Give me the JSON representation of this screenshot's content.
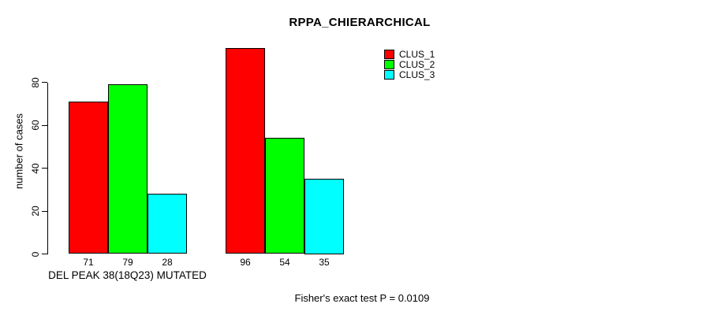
{
  "title": "RPPA_CHIERARCHICAL",
  "y_axis": {
    "label": "number of cases"
  },
  "x_axis": {
    "group_label": "DEL PEAK 38(18Q23) MUTATED"
  },
  "footer": "Fisher's exact test P = 0.0109",
  "legend": {
    "entries": [
      {
        "label": "CLUS_1",
        "color": "#FF0000"
      },
      {
        "label": "CLUS_2",
        "color": "#00FF00"
      },
      {
        "label": "CLUS_3",
        "color": "#00FFFF"
      }
    ]
  },
  "chart_data": {
    "type": "bar",
    "title": "RPPA_CHIERARCHICAL",
    "xlabel": "DEL PEAK 38(18Q23) MUTATED",
    "ylabel": "number of cases",
    "categories": [
      "DEL PEAK 38(18Q23) MUTATED",
      ""
    ],
    "series": [
      {
        "name": "CLUS_1",
        "color": "#FF0000",
        "values": [
          71,
          96
        ]
      },
      {
        "name": "CLUS_2",
        "color": "#00FF00",
        "values": [
          79,
          54
        ]
      },
      {
        "name": "CLUS_3",
        "color": "#00FFFF",
        "values": [
          28,
          35
        ]
      }
    ],
    "bar_value_labels": [
      [
        71,
        79,
        28
      ],
      [
        96,
        54,
        35
      ]
    ],
    "yticks": [
      0,
      20,
      40,
      60,
      80
    ],
    "ylim": [
      0,
      97
    ],
    "grid": false,
    "legend_position": "top-right-inside",
    "annotation": "Fisher's exact test P = 0.0109"
  }
}
